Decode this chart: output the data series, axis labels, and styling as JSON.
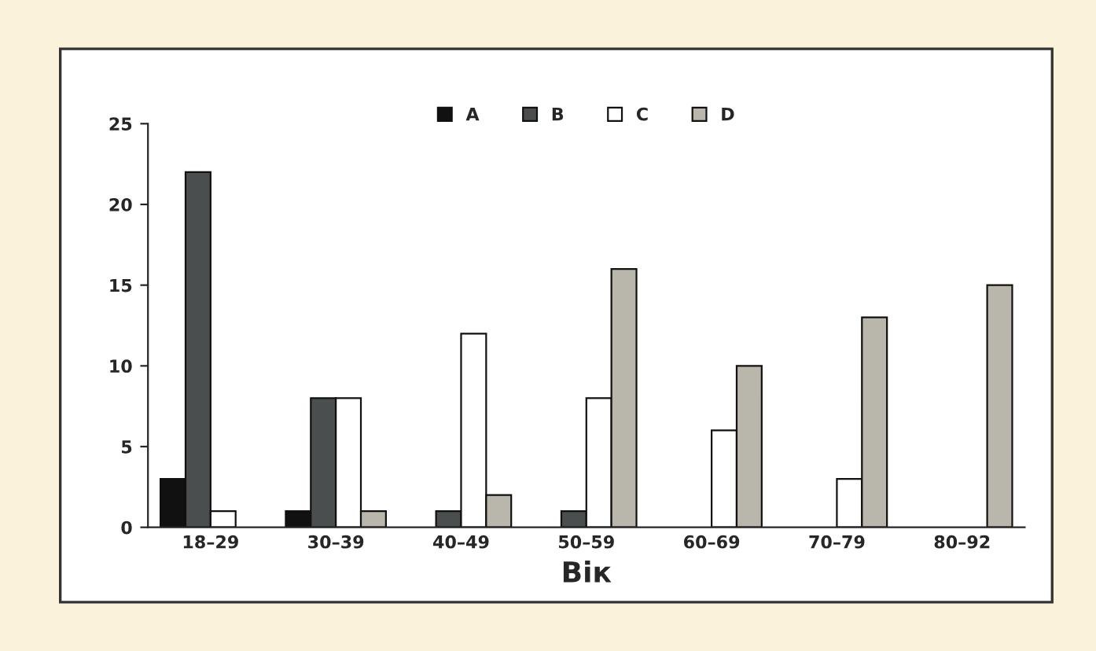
{
  "chart_data": {
    "type": "bar",
    "xlabel": "Вік",
    "categories": [
      "18–29",
      "30–39",
      "40–49",
      "50–59",
      "60–69",
      "70–79",
      "80–92"
    ],
    "series": [
      {
        "name": "A",
        "color": "#111111",
        "values": [
          3,
          1,
          null,
          null,
          null,
          null,
          null
        ]
      },
      {
        "name": "B",
        "color": "#4a4e4e",
        "values": [
          22,
          8,
          1,
          1,
          null,
          null,
          null
        ]
      },
      {
        "name": "C",
        "color": "#ffffff",
        "values": [
          1,
          8,
          12,
          8,
          6,
          3,
          null
        ]
      },
      {
        "name": "D",
        "color": "#b9b7ab",
        "values": [
          null,
          1,
          2,
          16,
          10,
          13,
          15
        ]
      }
    ],
    "ylim": [
      0,
      25
    ],
    "yticks": [
      0,
      5,
      10,
      15,
      20,
      25
    ],
    "grid": false,
    "legend": "top"
  }
}
